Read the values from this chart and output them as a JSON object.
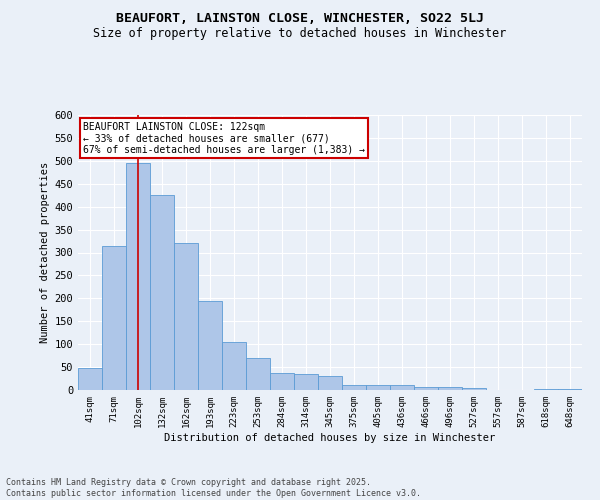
{
  "title_line1": "BEAUFORT, LAINSTON CLOSE, WINCHESTER, SO22 5LJ",
  "title_line2": "Size of property relative to detached houses in Winchester",
  "xlabel": "Distribution of detached houses by size in Winchester",
  "ylabel": "Number of detached properties",
  "categories": [
    "41sqm",
    "71sqm",
    "102sqm",
    "132sqm",
    "162sqm",
    "193sqm",
    "223sqm",
    "253sqm",
    "284sqm",
    "314sqm",
    "345sqm",
    "375sqm",
    "405sqm",
    "436sqm",
    "466sqm",
    "496sqm",
    "527sqm",
    "557sqm",
    "587sqm",
    "618sqm",
    "648sqm"
  ],
  "values": [
    47,
    315,
    495,
    425,
    320,
    195,
    105,
    70,
    38,
    35,
    30,
    10,
    10,
    12,
    7,
    6,
    4,
    1,
    0,
    2,
    2
  ],
  "bar_color": "#aec6e8",
  "bar_edge_color": "#5b9bd5",
  "vline_x_index": 2,
  "vline_color": "#cc0000",
  "annotation_text": "BEAUFORT LAINSTON CLOSE: 122sqm\n← 33% of detached houses are smaller (677)\n67% of semi-detached houses are larger (1,383) →",
  "annotation_box_color": "#ffffff",
  "annotation_box_edge_color": "#cc0000",
  "ylim": [
    0,
    600
  ],
  "yticks": [
    0,
    50,
    100,
    150,
    200,
    250,
    300,
    350,
    400,
    450,
    500,
    550,
    600
  ],
  "bg_color": "#eaf0f8",
  "plot_bg_color": "#eaf0f8",
  "grid_color": "#ffffff",
  "footer_text": "Contains HM Land Registry data © Crown copyright and database right 2025.\nContains public sector information licensed under the Open Government Licence v3.0."
}
